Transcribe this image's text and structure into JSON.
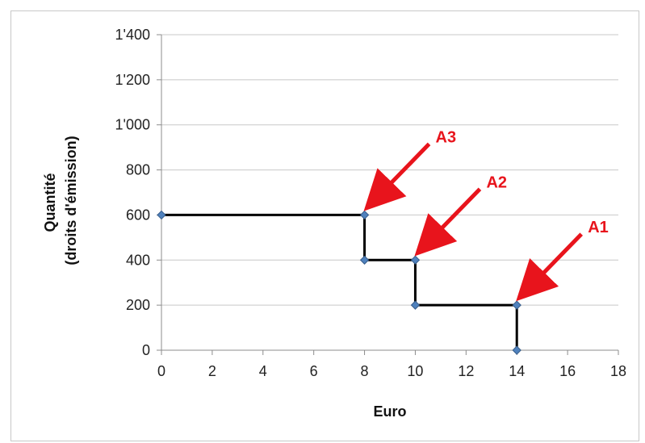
{
  "chart_data": {
    "type": "line",
    "title": "",
    "xlabel": "Euro",
    "ylabel_lines": [
      "Quantité",
      "(droits d'émission)"
    ],
    "xlim": [
      0,
      18
    ],
    "ylim": [
      0,
      1400
    ],
    "x_ticks": [
      0,
      2,
      4,
      6,
      8,
      10,
      12,
      14,
      16,
      18
    ],
    "y_ticks": [
      0,
      200,
      400,
      600,
      800,
      1000,
      1200,
      1400
    ],
    "y_tick_labels": [
      "0",
      "200",
      "400",
      "600",
      "800",
      "1'000",
      "1'200",
      "1'400"
    ],
    "grid": "horizontal",
    "legend": "none",
    "series": [
      {
        "points": [
          {
            "x": 0,
            "y": 600
          },
          {
            "x": 8,
            "y": 600
          },
          {
            "x": 8,
            "y": 400
          },
          {
            "x": 10,
            "y": 400
          },
          {
            "x": 10,
            "y": 200
          },
          {
            "x": 14,
            "y": 200
          },
          {
            "x": 14,
            "y": 0
          }
        ],
        "line_color": "#000000",
        "marker_color": "#4f81bd"
      }
    ],
    "annotations": [
      {
        "label": "A3",
        "x": 8,
        "y": 600
      },
      {
        "label": "A2",
        "x": 10,
        "y": 400
      },
      {
        "label": "A1",
        "x": 14,
        "y": 200
      }
    ],
    "annotation_color": "#e8141c"
  }
}
